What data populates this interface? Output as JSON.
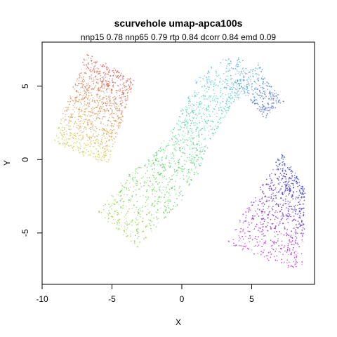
{
  "chart_data": {
    "type": "scatter",
    "title": "scurvehole umap-apca100s",
    "subtitle": "nnp15 0.78 nnp65 0.79 rtp 0.84 dcorr 0.84 emd 0.09",
    "xlabel": "X",
    "ylabel": "Y",
    "xlim": [
      -10,
      9.5
    ],
    "ylim": [
      -8.5,
      8.0
    ],
    "xticks": [
      -10,
      -5,
      0,
      5
    ],
    "yticks": [
      -5,
      0,
      5
    ],
    "xtick_labels": [
      "-10",
      "-5",
      "0",
      "5"
    ],
    "ytick_labels": [
      "-5",
      "0",
      "5"
    ],
    "grid": false,
    "legend": "none",
    "point_color_scheme": "rainbow hue along manifold",
    "clusters": [
      {
        "shape": "parallelogram",
        "corners": [
          [
            -6.8,
            7.3
          ],
          [
            -3.4,
            5.4
          ],
          [
            -5.3,
            -0.3
          ],
          [
            -9.2,
            1.1
          ]
        ],
        "hue_start": 0,
        "hue_end": 62,
        "count": 1100
      },
      {
        "shape": "curved-band",
        "hue_start": 80,
        "hue_end": 230,
        "count": 1500,
        "spine": [
          [
            -4.6,
            -4.8
          ],
          [
            -2.6,
            -2.6
          ],
          [
            -0.8,
            -1.0
          ],
          [
            0.8,
            1.8
          ],
          [
            2.0,
            4.2
          ],
          [
            3.2,
            5.4
          ],
          [
            4.6,
            5.9
          ],
          [
            5.4,
            4.8
          ],
          [
            6.6,
            3.4
          ]
        ],
        "widths": [
          1.9,
          2.0,
          1.8,
          1.4,
          1.6,
          1.5,
          1.2,
          0.9,
          0.9
        ]
      },
      {
        "shape": "parallelogram",
        "corners": [
          [
            7.2,
            0.5
          ],
          [
            8.8,
            -2.0
          ],
          [
            8.6,
            -7.6
          ],
          [
            3.2,
            -5.8
          ]
        ],
        "hue_start": 235,
        "hue_end": 300,
        "count": 1300
      }
    ]
  }
}
